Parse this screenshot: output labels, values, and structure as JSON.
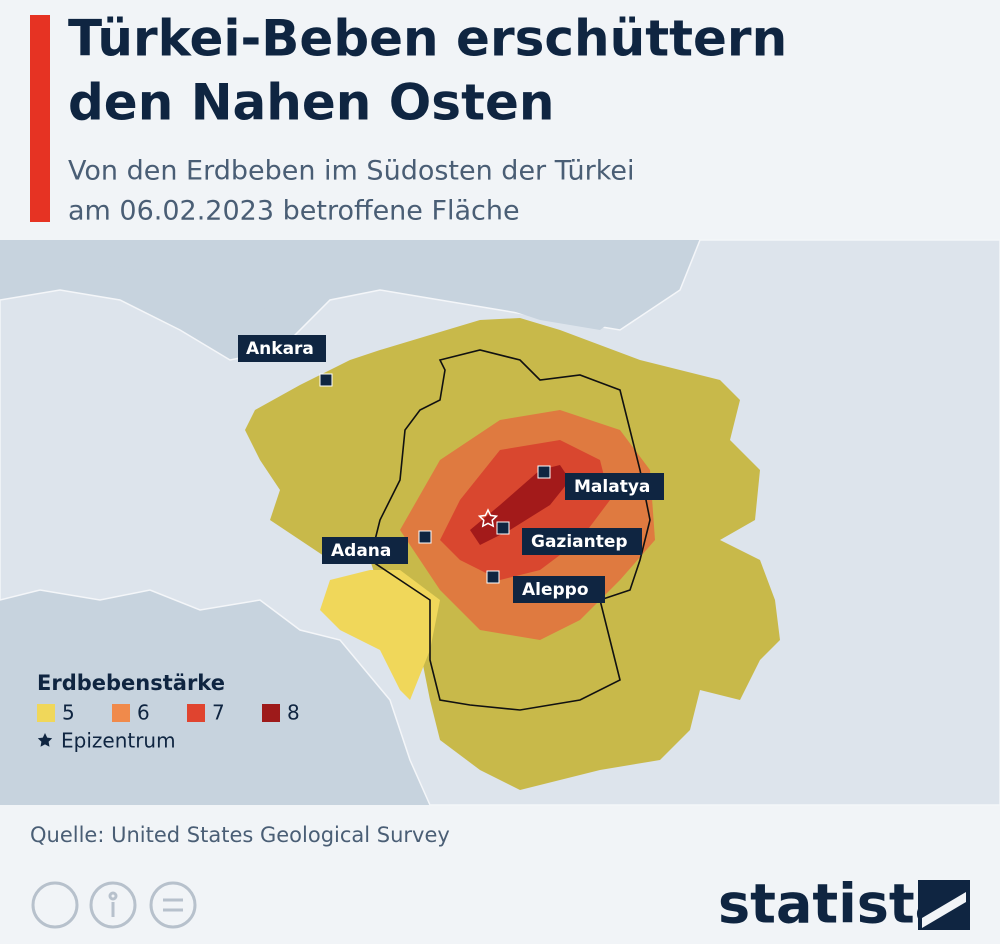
{
  "header": {
    "title_lines": [
      "Türkei-Beben erschüttern",
      "den Nahen Osten"
    ],
    "subtitle_lines": [
      "Von den Erdbeben im Südosten der Türkei",
      "am 06.02.2023 betroffene Fläche"
    ]
  },
  "map": {
    "cities": [
      "Ankara",
      "Malatya",
      "Gaziantep",
      "Adana",
      "Aleppo"
    ]
  },
  "legend": {
    "title": "Erdbebenstärke",
    "items": [
      {
        "label": "5",
        "color": "#f0d75a"
      },
      {
        "label": "6",
        "color": "#f08a4b"
      },
      {
        "label": "7",
        "color": "#e0442f"
      },
      {
        "label": "8",
        "color": "#9e1a1a"
      }
    ],
    "epicenter": "Epizentrum"
  },
  "footer": {
    "source": "Quelle: United States Geological Survey",
    "brand": "statista"
  }
}
